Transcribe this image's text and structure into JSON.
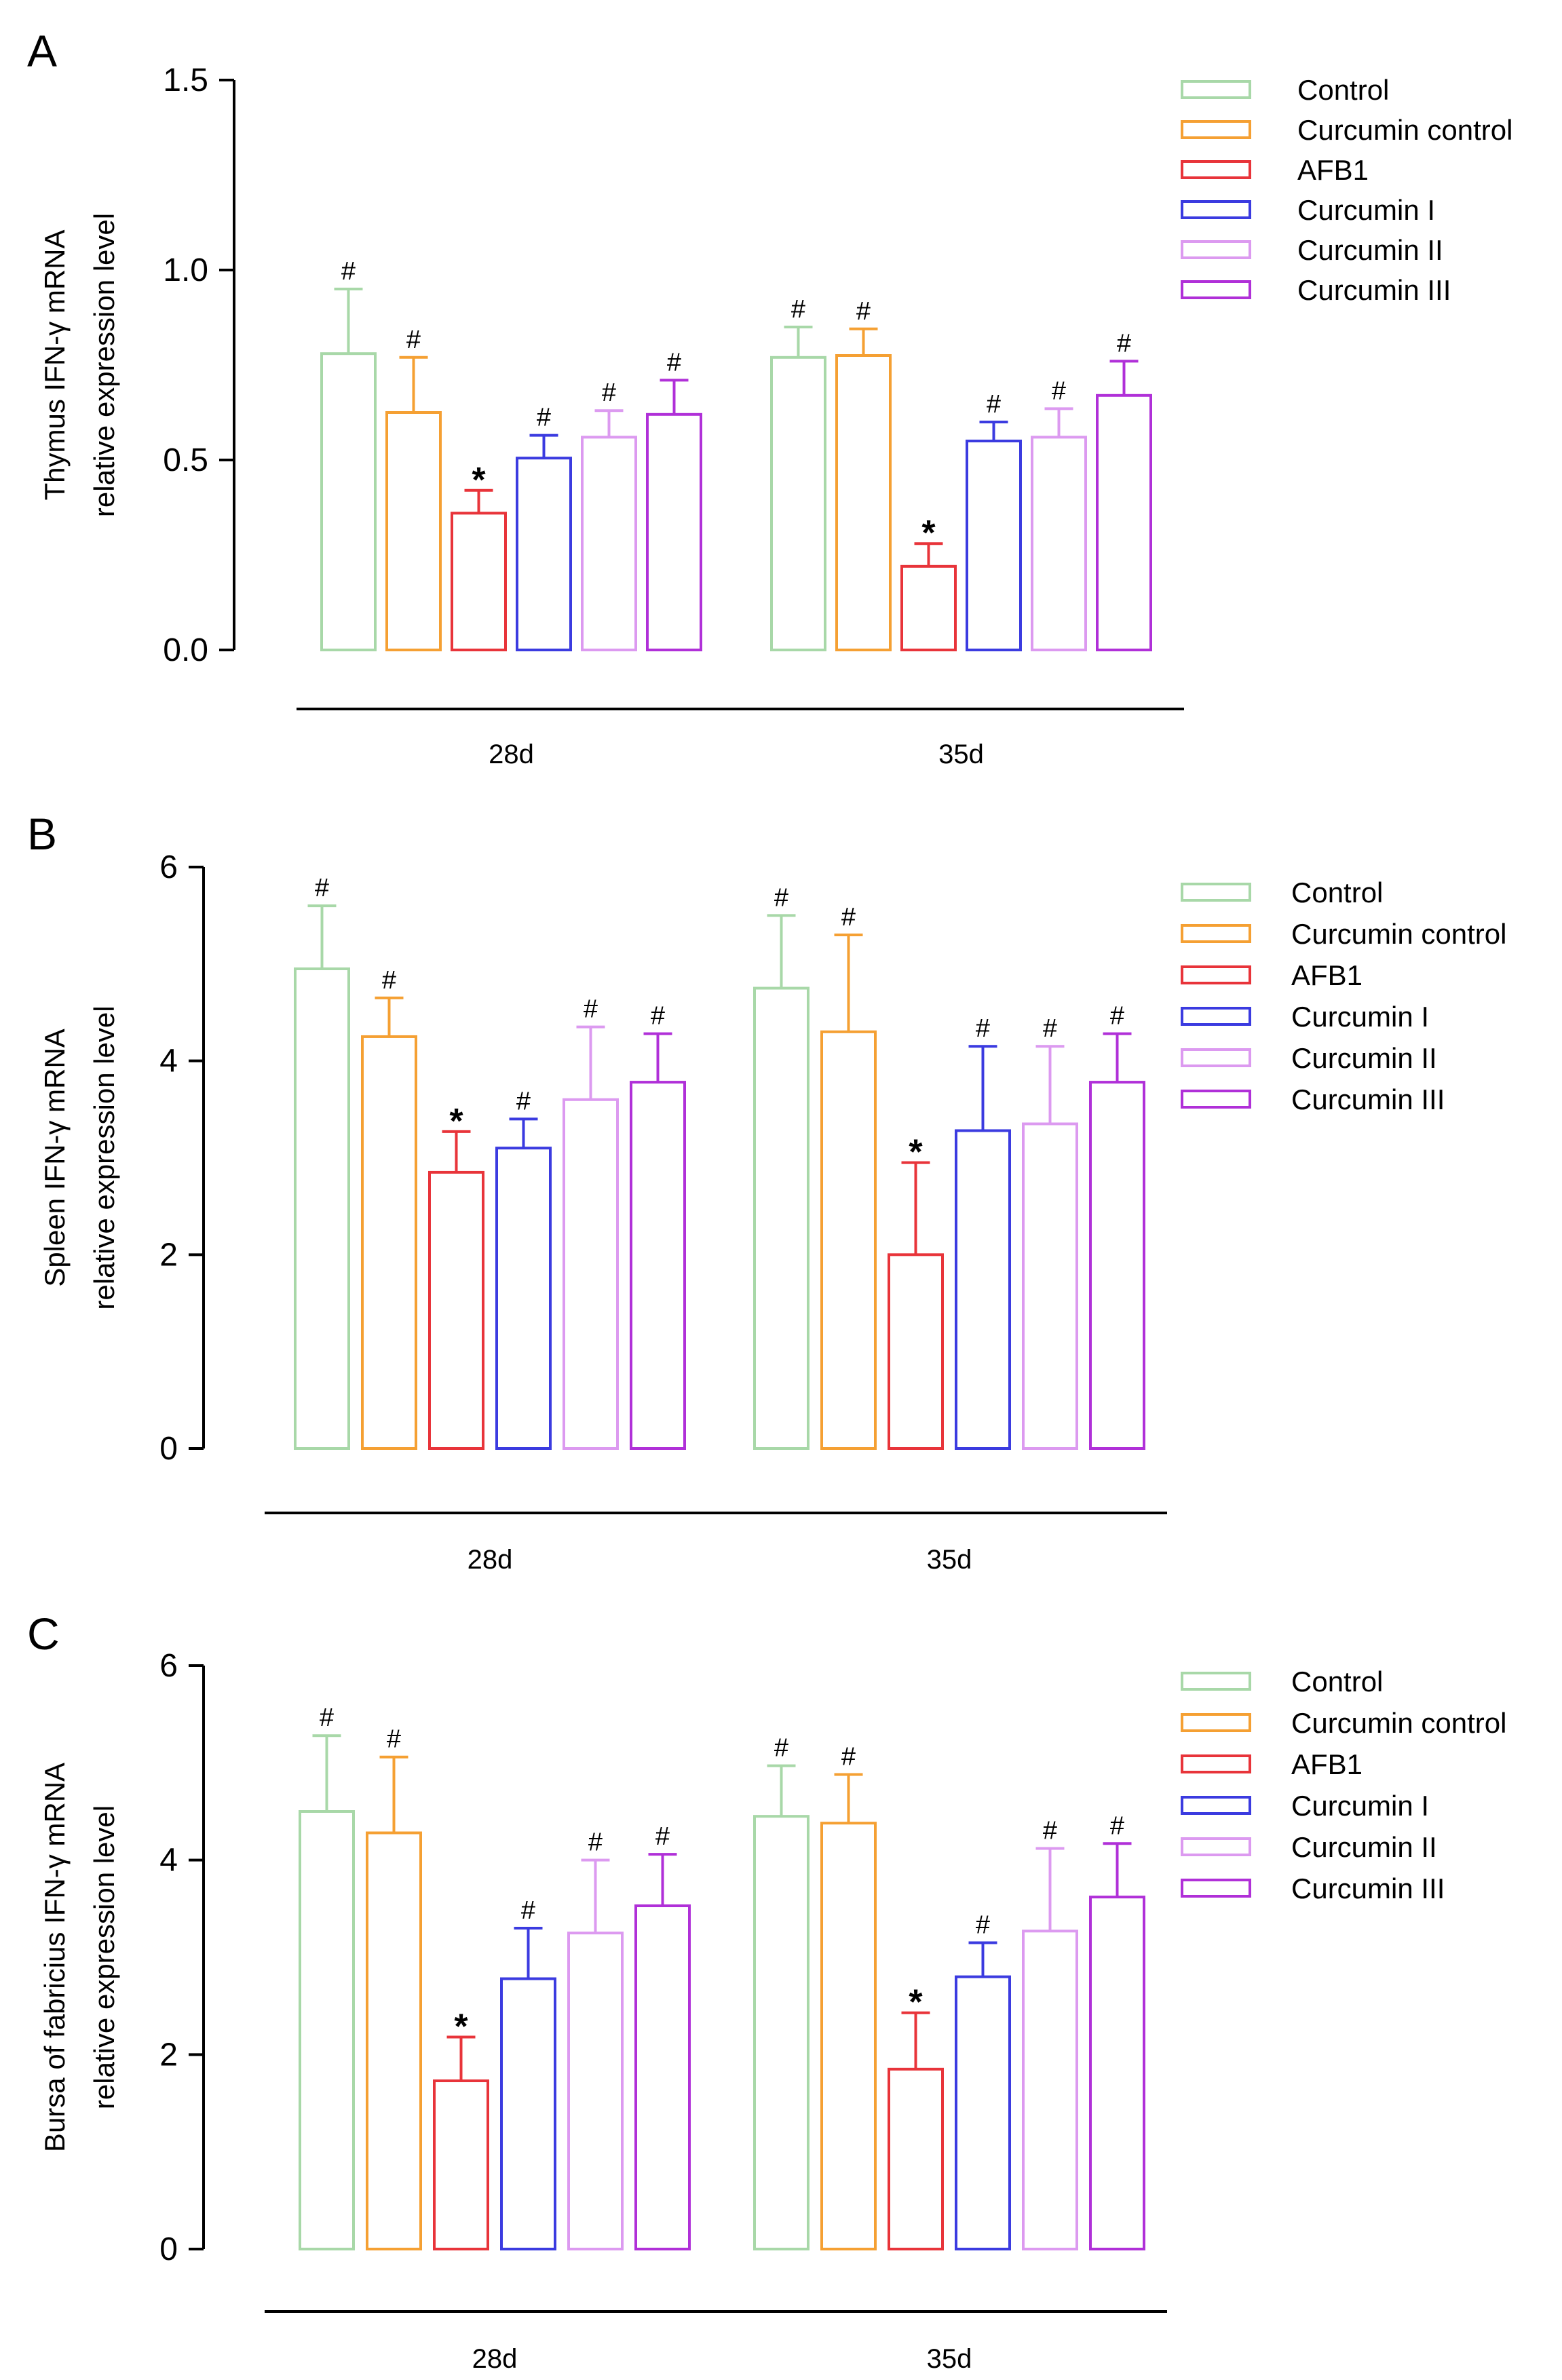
{
  "colors": {
    "control": "#a8d8a8",
    "curcumin_control": "#f5a033",
    "afb1": "#e8343a",
    "curcumin_1": "#3b3be0",
    "curcumin_2": "#dc9af0",
    "curcumin_3": "#b030d8",
    "axis": "#000000"
  },
  "chart_data": [
    {
      "type": "bar",
      "panel": "A",
      "ylabel": [
        "Thymus IFN-γ mRNA",
        "relative expression level"
      ],
      "xlabel": "",
      "ylim": [
        0,
        1.5
      ],
      "yticks": [
        0,
        0.5,
        1.0,
        1.5
      ],
      "ytick_labels": [
        "0.0",
        "0.5",
        "1.0",
        "1.5"
      ],
      "categories": [
        "28d",
        "35d"
      ],
      "legend_position": "top-right",
      "series": [
        {
          "name": "Control",
          "color_key": "control",
          "values": [
            0.78,
            0.77
          ],
          "errors": [
            0.17,
            0.08
          ],
          "annotations": [
            "#",
            "#"
          ]
        },
        {
          "name": "Curcumin control",
          "color_key": "curcumin_control",
          "values": [
            0.625,
            0.775
          ],
          "errors": [
            0.145,
            0.07
          ],
          "annotations": [
            "#",
            "#"
          ]
        },
        {
          "name": "AFB1",
          "color_key": "afb1",
          "values": [
            0.36,
            0.22
          ],
          "errors": [
            0.06,
            0.06
          ],
          "annotations": [
            "*",
            "*"
          ]
        },
        {
          "name": "Curcumin I",
          "color_key": "curcumin_1",
          "values": [
            0.505,
            0.55
          ],
          "errors": [
            0.06,
            0.05
          ],
          "annotations": [
            "#",
            "#"
          ]
        },
        {
          "name": "Curcumin II",
          "color_key": "curcumin_2",
          "values": [
            0.56,
            0.56
          ],
          "errors": [
            0.07,
            0.075
          ],
          "annotations": [
            "#",
            "#"
          ]
        },
        {
          "name": "Curcumin III",
          "color_key": "curcumin_3",
          "values": [
            0.62,
            0.67
          ],
          "errors": [
            0.09,
            0.09
          ],
          "annotations": [
            "#",
            "#"
          ]
        }
      ]
    },
    {
      "type": "bar",
      "panel": "B",
      "ylabel": [
        "Spleen IFN-γ mRNA",
        "relative expression level"
      ],
      "xlabel": "",
      "ylim": [
        0,
        6
      ],
      "yticks": [
        0,
        2,
        4,
        6
      ],
      "ytick_labels": [
        "0",
        "2",
        "4",
        "6"
      ],
      "categories": [
        "28d",
        "35d"
      ],
      "legend_position": "top-right",
      "series": [
        {
          "name": "Control",
          "color_key": "control",
          "values": [
            4.95,
            4.75
          ],
          "errors": [
            0.65,
            0.75
          ],
          "annotations": [
            "#",
            "#"
          ]
        },
        {
          "name": "Curcumin control",
          "color_key": "curcumin_control",
          "values": [
            4.25,
            4.3
          ],
          "errors": [
            0.4,
            1.0
          ],
          "annotations": [
            "#",
            "#"
          ]
        },
        {
          "name": "AFB1",
          "color_key": "afb1",
          "values": [
            2.85,
            2.0
          ],
          "errors": [
            0.42,
            0.95
          ],
          "annotations": [
            "*",
            "*"
          ]
        },
        {
          "name": "Curcumin I",
          "color_key": "curcumin_1",
          "values": [
            3.1,
            3.28
          ],
          "errors": [
            0.3,
            0.87
          ],
          "annotations": [
            "#",
            "#"
          ]
        },
        {
          "name": "Curcumin II",
          "color_key": "curcumin_2",
          "values": [
            3.6,
            3.35
          ],
          "errors": [
            0.75,
            0.8
          ],
          "annotations": [
            "#",
            "#"
          ]
        },
        {
          "name": "Curcumin III",
          "color_key": "curcumin_3",
          "values": [
            3.78,
            3.78
          ],
          "errors": [
            0.5,
            0.5
          ],
          "annotations": [
            "#",
            "#"
          ]
        }
      ]
    },
    {
      "type": "bar",
      "panel": "C",
      "ylabel": [
        "Bursa of fabricius IFN-γ mRNA",
        "relative expression level"
      ],
      "xlabel": "",
      "ylim": [
        0,
        6
      ],
      "yticks": [
        0,
        2,
        4,
        6
      ],
      "ytick_labels": [
        "0",
        "2",
        "4",
        "6"
      ],
      "categories": [
        "28d",
        "35d"
      ],
      "legend_position": "top-right",
      "series": [
        {
          "name": "Control",
          "color_key": "control",
          "values": [
            4.5,
            4.45
          ],
          "errors": [
            0.78,
            0.52
          ],
          "annotations": [
            "#",
            "#"
          ]
        },
        {
          "name": "Curcumin control",
          "color_key": "curcumin_control",
          "values": [
            4.28,
            4.38
          ],
          "errors": [
            0.78,
            0.5
          ],
          "annotations": [
            "#",
            "#"
          ]
        },
        {
          "name": "AFB1",
          "color_key": "afb1",
          "values": [
            1.73,
            1.85
          ],
          "errors": [
            0.45,
            0.58
          ],
          "annotations": [
            "*",
            "*"
          ]
        },
        {
          "name": "Curcumin I",
          "color_key": "curcumin_1",
          "values": [
            2.78,
            2.8
          ],
          "errors": [
            0.52,
            0.35
          ],
          "annotations": [
            "#",
            "#"
          ]
        },
        {
          "name": "Curcumin II",
          "color_key": "curcumin_2",
          "values": [
            3.25,
            3.27
          ],
          "errors": [
            0.75,
            0.85
          ],
          "annotations": [
            "#",
            "#"
          ]
        },
        {
          "name": "Curcumin III",
          "color_key": "curcumin_3",
          "values": [
            3.53,
            3.62
          ],
          "errors": [
            0.53,
            0.55
          ],
          "annotations": [
            "#",
            "#"
          ]
        }
      ]
    }
  ]
}
